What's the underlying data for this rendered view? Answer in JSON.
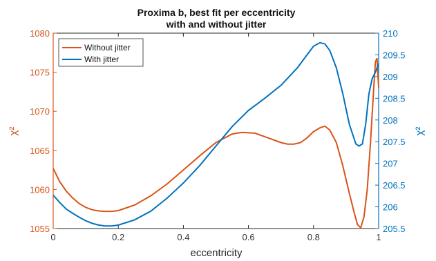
{
  "chart_data": {
    "type": "line",
    "title": [
      "Proxima b, best fit per eccentricity",
      "with and without jitter"
    ],
    "xlabel": "eccentricity",
    "ylabel_left": "χ²",
    "ylabel_right": "χ²",
    "xlim": [
      0,
      1
    ],
    "ylim_left": [
      1055,
      1080
    ],
    "ylim_right": [
      205.5,
      210
    ],
    "xticks": [
      "0",
      "0.2",
      "0.4",
      "0.6",
      "0.8",
      "1"
    ],
    "yticks_left": [
      "1055",
      "1060",
      "1065",
      "1070",
      "1075",
      "1080"
    ],
    "yticks_right": [
      "205.5",
      "206",
      "206.5",
      "207",
      "207.5",
      "208",
      "208.5",
      "209",
      "209.5",
      "210"
    ],
    "grid": false,
    "legend": {
      "position": "top-left"
    },
    "colors": {
      "without": "#d95319",
      "with": "#0072bd"
    },
    "series": [
      {
        "name": "Without jitter",
        "axis": "left",
        "x": [
          0,
          0.02,
          0.04,
          0.06,
          0.08,
          0.1,
          0.12,
          0.14,
          0.16,
          0.18,
          0.2,
          0.25,
          0.3,
          0.35,
          0.4,
          0.45,
          0.5,
          0.55,
          0.58,
          0.62,
          0.66,
          0.7,
          0.72,
          0.74,
          0.76,
          0.78,
          0.8,
          0.82,
          0.835,
          0.85,
          0.87,
          0.89,
          0.91,
          0.925,
          0.935,
          0.945,
          0.955,
          0.965,
          0.975,
          0.985,
          0.99,
          0.995,
          1.0
        ],
        "values": [
          1062.7,
          1061.0,
          1059.8,
          1058.9,
          1058.2,
          1057.7,
          1057.4,
          1057.25,
          1057.2,
          1057.2,
          1057.3,
          1058.0,
          1059.2,
          1060.7,
          1062.5,
          1064.3,
          1066.0,
          1067.1,
          1067.3,
          1067.2,
          1066.6,
          1066.0,
          1065.8,
          1065.8,
          1066.0,
          1066.6,
          1067.4,
          1067.9,
          1068.1,
          1067.6,
          1066.0,
          1063.0,
          1059.5,
          1057.0,
          1055.5,
          1055.1,
          1056.5,
          1060.0,
          1066.0,
          1073.0,
          1076.3,
          1076.8,
          1073.0
        ]
      },
      {
        "name": "With jitter",
        "axis": "right",
        "x": [
          0,
          0.02,
          0.04,
          0.06,
          0.08,
          0.1,
          0.12,
          0.14,
          0.16,
          0.18,
          0.2,
          0.25,
          0.3,
          0.35,
          0.4,
          0.45,
          0.5,
          0.55,
          0.6,
          0.65,
          0.7,
          0.75,
          0.78,
          0.8,
          0.82,
          0.835,
          0.85,
          0.87,
          0.89,
          0.91,
          0.93,
          0.94,
          0.95,
          0.96,
          0.97,
          0.98,
          0.99,
          1.0
        ],
        "values": [
          206.27,
          206.1,
          205.95,
          205.85,
          205.76,
          205.68,
          205.62,
          205.58,
          205.56,
          205.56,
          205.58,
          205.7,
          205.9,
          206.2,
          206.55,
          206.95,
          207.4,
          207.85,
          208.22,
          208.5,
          208.8,
          209.2,
          209.5,
          209.7,
          209.78,
          209.75,
          209.6,
          209.2,
          208.6,
          207.9,
          207.45,
          207.4,
          207.45,
          207.9,
          208.6,
          208.95,
          209.1,
          209.3
        ]
      }
    ]
  }
}
